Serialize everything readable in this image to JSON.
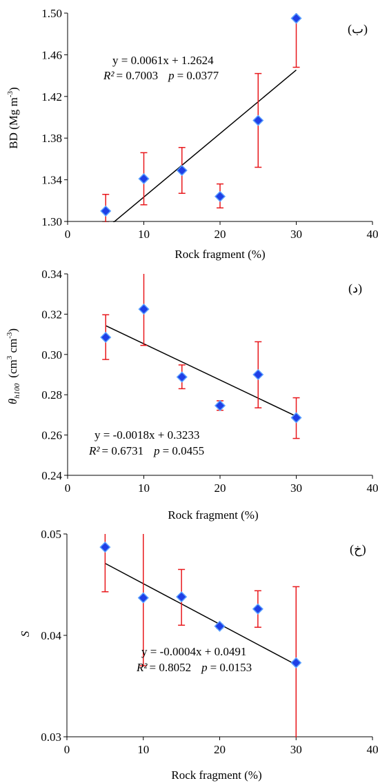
{
  "chart_data": [
    {
      "type": "scatter",
      "panel_label": "(ب)",
      "xlabel": "Rock fragment (%)",
      "ylabel_main": "BD (Mg m",
      "ylabel_sup": "-3",
      "ylabel_close": ")",
      "xlim": [
        0,
        40
      ],
      "ylim": [
        1.3,
        1.5
      ],
      "xticks": [
        0,
        10,
        20,
        30,
        40
      ],
      "xtick_labels": [
        "0",
        "10",
        "20",
        "30",
        "40"
      ],
      "yticks": [
        1.3,
        1.34,
        1.38,
        1.42,
        1.46,
        1.5
      ],
      "ytick_labels": [
        "1.30",
        "1.34",
        "1.38",
        "1.42",
        "1.46",
        "1.50"
      ],
      "x": [
        5,
        10,
        15,
        20,
        25,
        30
      ],
      "y": [
        1.31,
        1.341,
        1.349,
        1.324,
        1.397,
        1.495
      ],
      "err_low": [
        1.299,
        1.316,
        1.327,
        1.313,
        1.352,
        1.448
      ],
      "err_high": [
        1.326,
        1.366,
        1.371,
        1.336,
        1.442,
        1.54
      ],
      "trend": {
        "slope": 0.0061,
        "intercept": 1.2624,
        "x_start": 5,
        "x_end": 30
      },
      "equation": "y = 0.0061x + 1.2624",
      "r2_label": "R²",
      "r2_value": "= 0.7003",
      "p_label": "p",
      "p_value": "= 0.0377",
      "colors": {
        "marker": "#1f3fe6",
        "marker_edge": "#5aa0ff",
        "error": "#e8171b",
        "line": "#000000"
      }
    },
    {
      "type": "scatter",
      "panel_label": "(د)",
      "xlabel": "Rock fragment (%)",
      "ylabel_theta": "θ",
      "ylabel_sub": "h100",
      "ylabel_units": "(cm",
      "ylabel_sup1": "3",
      "ylabel_units2": " cm",
      "ylabel_sup2": "-3",
      "ylabel_close": ")",
      "xlim": [
        0,
        40
      ],
      "ylim": [
        0.24,
        0.34
      ],
      "xticks": [
        0,
        10,
        20,
        30,
        40
      ],
      "xtick_labels": [
        "0",
        "10",
        "20",
        "30",
        "40"
      ],
      "yticks": [
        0.24,
        0.26,
        0.28,
        0.3,
        0.32,
        0.34
      ],
      "ytick_labels": [
        "0.24",
        "0.26",
        "0.28",
        "0.30",
        "0.32",
        "0.34"
      ],
      "x": [
        5,
        10,
        15,
        20,
        25,
        30
      ],
      "y": [
        0.3085,
        0.3225,
        0.2888,
        0.2746,
        0.29,
        0.2686
      ],
      "err_low": [
        0.2975,
        0.3045,
        0.283,
        0.2723,
        0.2735,
        0.2583
      ],
      "err_high": [
        0.3197,
        0.341,
        0.2948,
        0.277,
        0.3063,
        0.2785
      ],
      "trend": {
        "slope": -0.0018,
        "intercept": 0.3233,
        "x_start": 5,
        "x_end": 30
      },
      "equation": "y = -0.0018x + 0.3233",
      "r2_label": "R²",
      "r2_value": "= 0.6731",
      "p_label": "p",
      "p_value": "= 0.0455",
      "colors": {
        "marker": "#1f3fe6",
        "marker_edge": "#5aa0ff",
        "error": "#e8171b",
        "line": "#000000"
      }
    },
    {
      "type": "scatter",
      "panel_label": "(خ)",
      "xlabel": "Rock fragment (%)",
      "ylabel": "S",
      "xlim": [
        0,
        40
      ],
      "ylim": [
        0.03,
        0.05
      ],
      "xticks": [
        0,
        10,
        20,
        30,
        40
      ],
      "xtick_labels": [
        "0",
        "10",
        "20",
        "30",
        "40"
      ],
      "yticks": [
        0.03,
        0.04,
        0.05
      ],
      "ytick_labels": [
        "0.03",
        "0.04",
        "0.05"
      ],
      "x": [
        5,
        10,
        15,
        20,
        25,
        30
      ],
      "y": [
        0.0487,
        0.0437,
        0.0438,
        0.0409,
        0.0426,
        0.0373
      ],
      "err_low": [
        0.0443,
        0.037,
        0.041,
        0.0407,
        0.0408,
        0.0297
      ],
      "err_high": [
        0.0502,
        0.0505,
        0.0465,
        0.0411,
        0.0444,
        0.0448
      ],
      "trend": {
        "slope": -0.0004,
        "intercept": 0.0491,
        "x_start": 5,
        "x_end": 30
      },
      "equation": "y = -0.0004x + 0.0491",
      "r2_label": "R²",
      "r2_value": "= 0.8052",
      "p_label": "p",
      "p_value": "= 0.0153",
      "colors": {
        "marker": "#1f3fe6",
        "marker_edge": "#5aa0ff",
        "error": "#e8171b",
        "line": "#000000"
      }
    }
  ]
}
